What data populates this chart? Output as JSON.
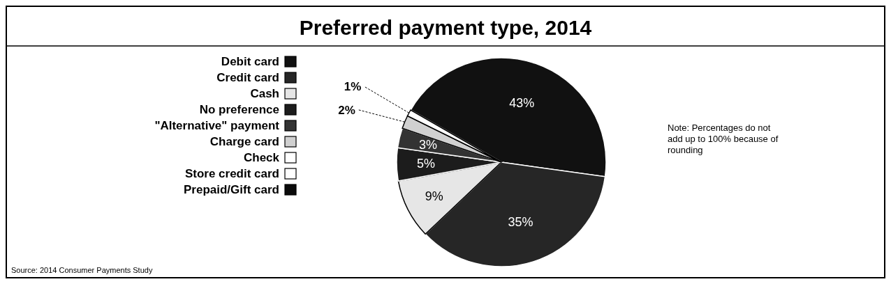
{
  "chart_data": {
    "type": "pie",
    "title": "Preferred payment type, 2014",
    "categories": [
      "Debit card",
      "Credit card",
      "Cash",
      "No preference",
      "\"Alternative\" payment",
      "Charge card",
      "Check",
      "Store credit card",
      "Prepaid/Gift card"
    ],
    "values": [
      43,
      35,
      9,
      5,
      3,
      2,
      1,
      0,
      0
    ],
    "colors": [
      "#111111",
      "#262626",
      "#e6e6e6",
      "#1c1c1c",
      "#333333",
      "#d0d0d0",
      "#ffffff",
      "#ffffff",
      "#0a0a0a"
    ],
    "value_labels": [
      "43%",
      "35%",
      "9%",
      "5%",
      "3%",
      "2%",
      "1%",
      null,
      null
    ],
    "legend": "left",
    "annotations": [
      "Note: Percentages do not add up to 100% because of rounding",
      "Source: 2014 Consumer Payments Study"
    ]
  }
}
